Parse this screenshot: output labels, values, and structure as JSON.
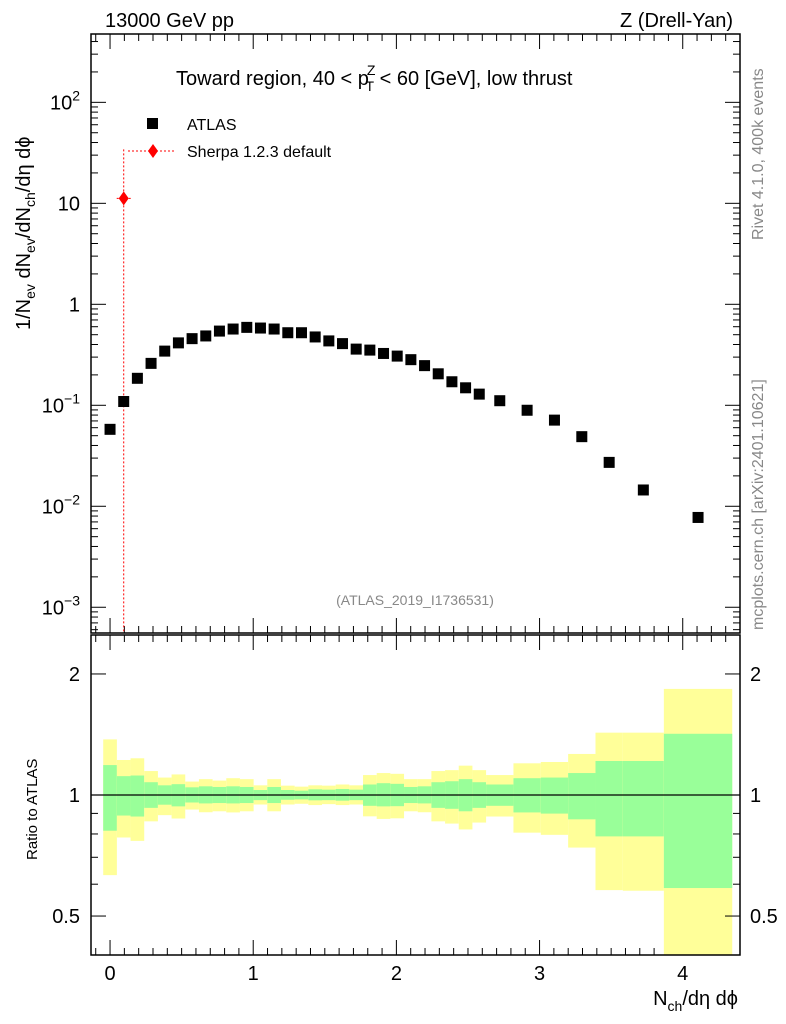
{
  "header": {
    "left": "13000 GeV pp",
    "right": "Z (Drell-Yan)"
  },
  "side_text": {
    "rivet": "Rivet 4.1.0,  400k events",
    "mcplots": "mcplots.cern.ch [arXiv:2401.10621]"
  },
  "analysis_id": "(ATLAS_2019_I1736531)",
  "colors": {
    "data": "#000000",
    "mc": "#ff0000",
    "band_inner": "#99ff99",
    "band_outer": "#ffff99"
  },
  "chart_data": [
    {
      "type": "scatter",
      "title_parts": {
        "pre": "Toward region, 40 < p",
        "sub": "T",
        "sup": "Z",
        "post": " < 60 [GeV], low thrust"
      },
      "ylabel_parts": [
        "1/N",
        "ev",
        " dN",
        "ev",
        "/dN",
        "ch",
        "/dη dϕ"
      ],
      "xlabel_parts": [
        "N",
        "ch",
        "/dη dϕ"
      ],
      "yscale": "log",
      "ylim": [
        0.000556,
        475
      ],
      "xlim": [
        -0.133,
        4.4
      ],
      "xticks": [
        "0",
        "1",
        "2",
        "3",
        "4"
      ],
      "yticks": [
        {
          "v": 100,
          "base": "10",
          "exp": "2"
        },
        {
          "v": 10,
          "base": "10",
          "exp": ""
        },
        {
          "v": 1,
          "base": "1",
          "exp": ""
        },
        {
          "v": 0.1,
          "base": "10",
          "exp": "−1"
        },
        {
          "v": 0.01,
          "base": "10",
          "exp": "−2"
        },
        {
          "v": 0.001,
          "base": "10",
          "exp": "−3"
        }
      ],
      "legend": {
        "position": "top-left",
        "entries": [
          "ATLAS",
          "Sherpa 1.2.3 default"
        ]
      },
      "series": [
        {
          "name": "ATLAS",
          "x": [
            0,
            0.0955,
            0.191,
            0.2865,
            0.382,
            0.4776,
            0.5731,
            0.6686,
            0.7641,
            0.8596,
            0.9551,
            1.0506,
            1.1461,
            1.2416,
            1.3372,
            1.4327,
            1.5282,
            1.6237,
            1.7192,
            1.8147,
            1.9102,
            2.0057,
            2.1012,
            2.1968,
            2.2923,
            2.3878,
            2.4833,
            2.5788,
            2.7221,
            2.9131,
            3.1041,
            3.2951,
            3.4862,
            3.7249,
            4.107
          ],
          "y": [
            0.0578,
            0.109,
            0.185,
            0.26,
            0.344,
            0.415,
            0.457,
            0.486,
            0.543,
            0.569,
            0.591,
            0.582,
            0.569,
            0.523,
            0.523,
            0.475,
            0.434,
            0.408,
            0.36,
            0.352,
            0.326,
            0.307,
            0.283,
            0.247,
            0.205,
            0.171,
            0.149,
            0.129,
            0.111,
            0.0893,
            0.0713,
            0.0489,
            0.0272,
            0.0145,
            0.00775
          ]
        },
        {
          "name": "Sherpa 1.2.3 default",
          "x": [
            0.0955
          ],
          "y": [
            11.2
          ],
          "yerr_up": [
            23
          ],
          "yerr_down": [
            0.0001
          ]
        }
      ]
    },
    {
      "type": "area",
      "ylabel": "Ratio to ATLAS",
      "yscale": "log",
      "ylim": [
        0.4,
        2.5
      ],
      "yticks": [
        "0.5",
        "1",
        "2"
      ],
      "reference": 1,
      "bin_edges_nch": [
        -0.5,
        0.5,
        1.5,
        2.5,
        3.5,
        4.5,
        5.5,
        6.5,
        7.5,
        8.5,
        9.5,
        10.5,
        11.5,
        12.5,
        13.5,
        14.5,
        15.5,
        16.5,
        17.5,
        18.5,
        19.5,
        20.5,
        21.5,
        22.5,
        23.5,
        24.5,
        25.5,
        26.5,
        27.5,
        29.5,
        31.5,
        33.5,
        35.5,
        37.5,
        40.5,
        45.5
      ],
      "bin_width_scale": 10.47,
      "inner_up": [
        1.187,
        1.114,
        1.118,
        1.076,
        1.057,
        1.064,
        1.045,
        1.051,
        1.047,
        1.051,
        1.047,
        1.029,
        1.047,
        1.029,
        1.025,
        1.033,
        1.031,
        1.035,
        1.031,
        1.062,
        1.07,
        1.066,
        1.047,
        1.051,
        1.076,
        1.082,
        1.095,
        1.076,
        1.062,
        1.101,
        1.105,
        1.134,
        1.215,
        1.215,
        1.42
      ],
      "inner_down": [
        0.815,
        0.889,
        0.884,
        0.929,
        0.946,
        0.937,
        0.958,
        0.953,
        0.955,
        0.953,
        0.955,
        0.971,
        0.955,
        0.973,
        0.975,
        0.97,
        0.971,
        0.968,
        0.971,
        0.94,
        0.937,
        0.938,
        0.955,
        0.953,
        0.929,
        0.924,
        0.911,
        0.929,
        0.94,
        0.905,
        0.899,
        0.87,
        0.789,
        0.789,
        0.587
      ],
      "outer_up": [
        1.375,
        1.222,
        1.234,
        1.147,
        1.105,
        1.125,
        1.08,
        1.095,
        1.086,
        1.101,
        1.095,
        1.057,
        1.095,
        1.055,
        1.049,
        1.057,
        1.055,
        1.062,
        1.057,
        1.121,
        1.134,
        1.129,
        1.095,
        1.095,
        1.147,
        1.153,
        1.183,
        1.153,
        1.121,
        1.199,
        1.208,
        1.265,
        1.429,
        1.429,
        1.836
      ],
      "outer_down": [
        0.632,
        0.784,
        0.769,
        0.86,
        0.891,
        0.874,
        0.92,
        0.906,
        0.911,
        0.905,
        0.911,
        0.947,
        0.911,
        0.947,
        0.951,
        0.944,
        0.949,
        0.944,
        0.947,
        0.885,
        0.872,
        0.875,
        0.911,
        0.906,
        0.86,
        0.849,
        0.821,
        0.854,
        0.884,
        0.806,
        0.796,
        0.74,
        0.58,
        0.578,
        0.3
      ]
    }
  ]
}
